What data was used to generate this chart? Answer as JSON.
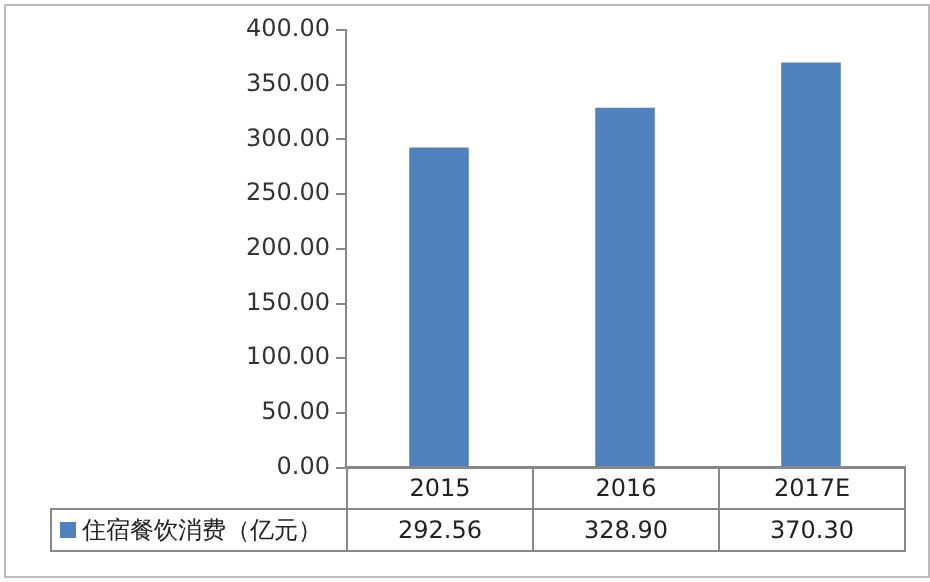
{
  "chart_data": {
    "type": "bar",
    "categories": [
      "2015",
      "2016",
      "2017E"
    ],
    "series": [
      {
        "name": "住宿餐饮消费（亿元）",
        "color": "#4f81bd",
        "values": [
          292.56,
          328.9,
          370.3
        ],
        "value_labels": [
          "292.56",
          "328.90",
          "370.30"
        ]
      }
    ],
    "ylim": [
      0,
      400
    ],
    "yticks": [
      {
        "value": 0,
        "label": "0.00"
      },
      {
        "value": 50,
        "label": "50.00"
      },
      {
        "value": 100,
        "label": "100.00"
      },
      {
        "value": 150,
        "label": "150.00"
      },
      {
        "value": 200,
        "label": "200.00"
      },
      {
        "value": 250,
        "label": "250.00"
      },
      {
        "value": 300,
        "label": "300.00"
      },
      {
        "value": 350,
        "label": "350.00"
      },
      {
        "value": 400,
        "label": "400.00"
      }
    ]
  }
}
